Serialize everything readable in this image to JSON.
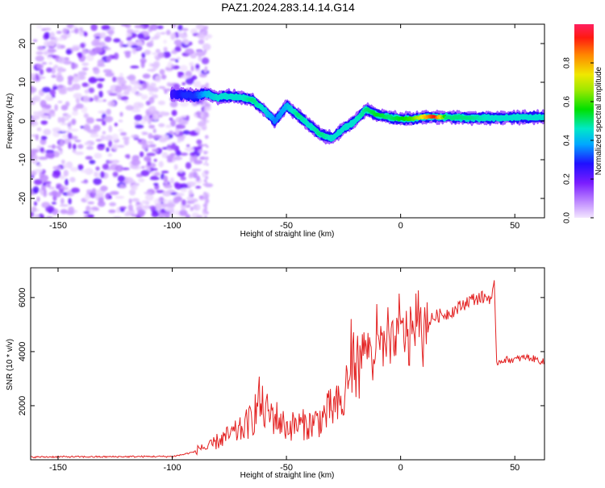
{
  "title": "PAZ1.2024.283.14.14.G14",
  "chart_data": [
    {
      "type": "heatmap",
      "xlabel": "Height of straight line (km)",
      "ylabel": "Frequency (Hz)",
      "xlim": [
        -162,
        63
      ],
      "ylim": [
        -25,
        25
      ],
      "x_ticks": [
        -150,
        -100,
        -50,
        0,
        50
      ],
      "y_ticks": [
        -20,
        -10,
        0,
        10,
        20
      ],
      "colorbar": {
        "label": "Normalized spectral amplitude",
        "range": [
          0,
          1
        ],
        "ticks": [
          "0.0",
          "0.2",
          "0.4",
          "0.6",
          "0.8"
        ]
      },
      "ridge": {
        "x": [
          -100,
          -95,
          -90,
          -85,
          -80,
          -75,
          -70,
          -65,
          -60,
          -55,
          -50,
          -45,
          -40,
          -35,
          -30,
          -25,
          -20,
          -15,
          -10,
          -5,
          0,
          5,
          10,
          15,
          20,
          30,
          40,
          50,
          60
        ],
        "freq": [
          7,
          6.8,
          6.5,
          7,
          6,
          6.5,
          6,
          5.5,
          3,
          0,
          4,
          1.5,
          -1,
          -3.5,
          -4.5,
          -2,
          0,
          3,
          1.5,
          1,
          0.5,
          0.5,
          1,
          1,
          1,
          0.8,
          0.8,
          0.9,
          1
        ],
        "amplitude": [
          0.25,
          0.3,
          0.3,
          0.4,
          0.45,
          0.45,
          0.45,
          0.5,
          0.45,
          0.35,
          0.4,
          0.5,
          0.45,
          0.5,
          0.45,
          0.45,
          0.45,
          0.5,
          0.55,
          0.5,
          0.55,
          0.6,
          0.75,
          0.95,
          0.5,
          0.5,
          0.45,
          0.45,
          0.45
        ]
      }
    },
    {
      "type": "line",
      "xlabel": "Height of straight line (km)",
      "ylabel": "SNR (10 * v/v)",
      "xlim": [
        -162,
        63
      ],
      "ylim": [
        0,
        7100
      ],
      "x_ticks": [
        -150,
        -100,
        -50,
        0,
        50
      ],
      "y_ticks": [
        2000,
        4000,
        6000
      ],
      "series": [
        {
          "color": "#e32222",
          "x": [
            -162,
            -150,
            -130,
            -110,
            -100,
            -95,
            -90,
            -87,
            -85,
            -80,
            -75,
            -70,
            -65,
            -62,
            -60,
            -55,
            -50,
            -45,
            -40,
            -35,
            -30,
            -25,
            -22,
            -20,
            -15,
            -12,
            -10,
            -5,
            0,
            5,
            10,
            15,
            20,
            25,
            30,
            35,
            40,
            41,
            42,
            45,
            50,
            55,
            60,
            63
          ],
          "values": [
            100,
            110,
            110,
            120,
            120,
            200,
            300,
            500,
            400,
            700,
            900,
            1100,
            1500,
            2200,
            1800,
            1600,
            1200,
            1300,
            1300,
            1500,
            1900,
            2000,
            3500,
            3800,
            4200,
            3900,
            4200,
            4200,
            4800,
            4900,
            4900,
            5300,
            5400,
            5600,
            5900,
            6000,
            6000,
            6400,
            3600,
            3700,
            3700,
            3800,
            3700,
            3600
          ]
        }
      ]
    }
  ]
}
